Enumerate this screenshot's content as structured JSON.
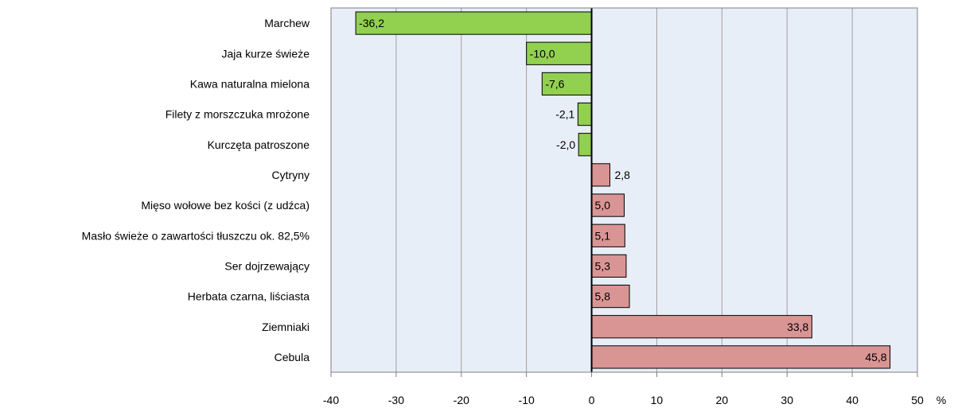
{
  "chart_data": {
    "type": "bar",
    "orientation": "horizontal",
    "categories": [
      "Marchew",
      "Jaja kurze świeże",
      "Kawa naturalna mielona",
      "Filety z morszczuka mrożone",
      "Kurczęta patroszone",
      "Cytryny",
      "Mięso wołowe bez kości (z udźca)",
      "Masło świeże o zawartości tłuszczu ok. 82,5%",
      "Ser dojrzewający",
      "Herbata czarna, liściasta",
      "Ziemniaki",
      "Cebula"
    ],
    "values": [
      -36.2,
      -10.0,
      -7.6,
      -2.1,
      -2.0,
      2.8,
      5.0,
      5.1,
      5.3,
      5.8,
      33.8,
      45.8
    ],
    "value_labels": [
      "-36,2",
      "-10,0",
      "-7,6",
      "-2,1",
      "-2,0",
      "2,8",
      "5,0",
      "5,1",
      "5,3",
      "5,8",
      "33,8",
      "45,8"
    ],
    "xlim": [
      -40,
      50
    ],
    "xticks": [
      -40,
      -30,
      -20,
      -10,
      0,
      10,
      20,
      30,
      40,
      50
    ],
    "xtick_labels": [
      "-40",
      "-30",
      "-20",
      "-10",
      "0",
      "10",
      "20",
      "30",
      "40",
      "50"
    ],
    "unit_label": "%",
    "grid": "vertical",
    "colors": {
      "negative": "#92d050",
      "positive": "#d99594",
      "plot_background": "#e8eef7",
      "gridline": "#a0a0a0",
      "border": "#000000"
    }
  }
}
